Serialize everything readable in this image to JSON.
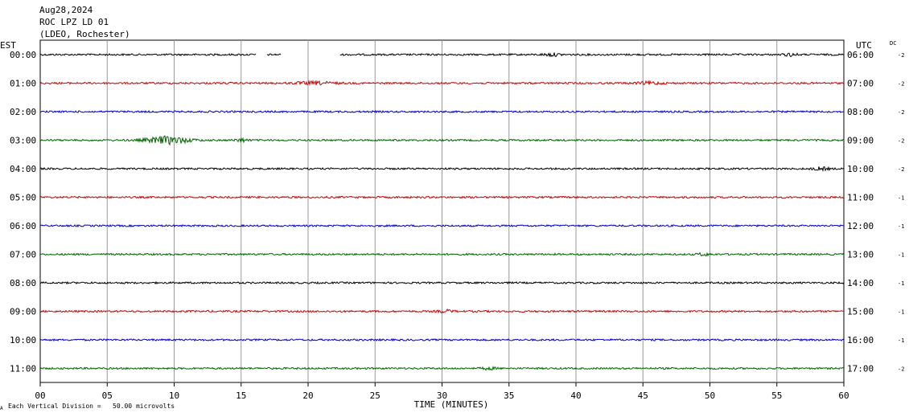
{
  "header": {
    "date": "Aug28,2024",
    "station": "ROC LPZ LD 01",
    "network": "(LDEO, Rochester)"
  },
  "left_axis_title": "EST",
  "right_axis_title": "UTC",
  "dc_title": "DC",
  "footer": {
    "division_note": "Each Vertical Division =   50.00 microvolts",
    "corner_mark": "A"
  },
  "colors": {
    "black": "#000000",
    "red": "#cc0000",
    "blue": "#0000cc",
    "green": "#006600",
    "grid": "#999999"
  },
  "chart_data": {
    "type": "line",
    "title": "ROC LPZ LD 01",
    "xlabel": "TIME (MINUTES)",
    "ylabel": "",
    "xlim": [
      0,
      60
    ],
    "x_ticks": [
      "00",
      "05",
      "10",
      "15",
      "20",
      "25",
      "30",
      "35",
      "40",
      "45",
      "50",
      "55",
      "60"
    ],
    "grid": true,
    "series": [
      {
        "est": "00:00",
        "utc": "06:00",
        "dc": "-2",
        "color": "black",
        "gaps": [
          [
            16.1,
            16.9
          ],
          [
            18.0,
            22.4
          ]
        ],
        "bursts": [
          [
            38.2,
            0.6,
            1.6
          ],
          [
            56.0,
            0.5,
            1.6
          ]
        ]
      },
      {
        "est": "01:00",
        "utc": "07:00",
        "dc": "-2",
        "color": "red",
        "gaps": [],
        "bursts": [
          [
            20.5,
            1.5,
            1.6
          ],
          [
            45.5,
            1.0,
            1.5
          ]
        ]
      },
      {
        "est": "02:00",
        "utc": "08:00",
        "dc": "-2",
        "color": "blue",
        "gaps": [],
        "bursts": []
      },
      {
        "est": "03:00",
        "utc": "09:00",
        "dc": "-2",
        "color": "green",
        "gaps": [],
        "bursts": [
          [
            9.5,
            1.6,
            4.5
          ],
          [
            15.0,
            0.5,
            1.8
          ]
        ]
      },
      {
        "est": "04:00",
        "utc": "10:00",
        "dc": "-2",
        "color": "black",
        "gaps": [],
        "bursts": [
          [
            58.3,
            0.6,
            1.7
          ]
        ]
      },
      {
        "est": "05:00",
        "utc": "11:00",
        "dc": "-1",
        "color": "red",
        "gaps": [],
        "bursts": []
      },
      {
        "est": "06:00",
        "utc": "12:00",
        "dc": "-1",
        "color": "blue",
        "gaps": [],
        "bursts": []
      },
      {
        "est": "07:00",
        "utc": "13:00",
        "dc": "-1",
        "color": "green",
        "gaps": [],
        "bursts": [
          [
            49.5,
            0.5,
            1.4
          ]
        ]
      },
      {
        "est": "08:00",
        "utc": "14:00",
        "dc": "-1",
        "color": "black",
        "gaps": [],
        "bursts": []
      },
      {
        "est": "09:00",
        "utc": "15:00",
        "dc": "-1",
        "color": "red",
        "gaps": [],
        "bursts": [
          [
            30.3,
            0.6,
            1.5
          ]
        ]
      },
      {
        "est": "10:00",
        "utc": "16:00",
        "dc": "-1",
        "color": "blue",
        "gaps": [],
        "bursts": []
      },
      {
        "est": "11:00",
        "utc": "17:00",
        "dc": "-2",
        "color": "green",
        "gaps": [],
        "bursts": [
          [
            33.5,
            0.5,
            1.4
          ]
        ]
      }
    ]
  }
}
